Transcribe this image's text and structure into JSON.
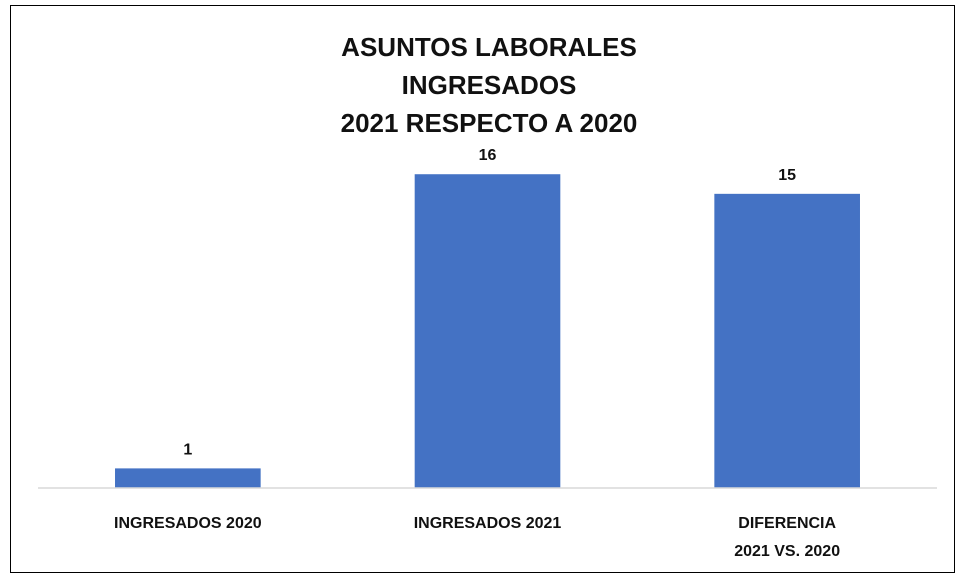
{
  "chart_data": {
    "type": "bar",
    "title": "ASUNTOS LABORALES INGRESADOS\n2021 RESPECTO A 2020",
    "categories": [
      "INGRESADOS 2020",
      "INGRESADOS 2021",
      "DIFERENCIA\n2021 VS. 2020"
    ],
    "values": [
      1,
      16,
      15
    ],
    "color": "#4472c4",
    "ylim": [
      0,
      18
    ]
  }
}
